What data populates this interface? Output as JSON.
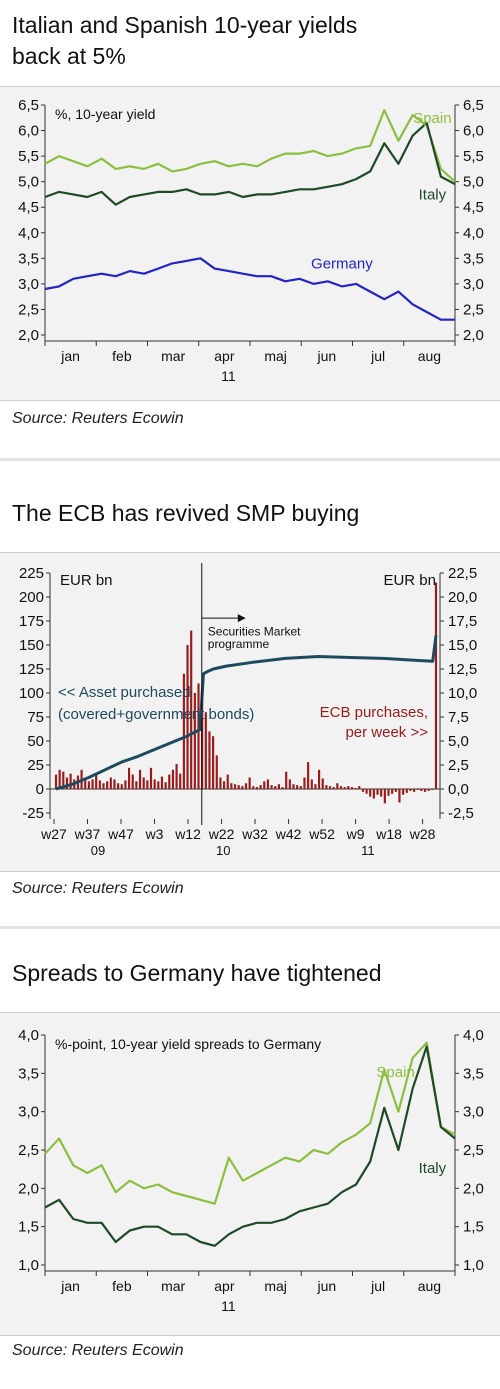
{
  "panels": [
    {
      "title_line1": "Italian and Spanish 10-year yields",
      "title_line2": "back at 5%",
      "source": "Source: Reuters Ecowin"
    },
    {
      "title_line1": "The ECB has revived SMP buying",
      "source": "Source: Reuters Ecowin"
    },
    {
      "title_line1": "Spreads to Germany have tightened",
      "source": "Source: Reuters Ecowin"
    }
  ],
  "chart_data": [
    {
      "type": "line",
      "ylabel": "%, 10-year yield",
      "ylim": [
        2.0,
        6.5
      ],
      "yticks": [
        "2,0",
        "2,5",
        "3,0",
        "3,5",
        "4,0",
        "4,5",
        "5,0",
        "5,5",
        "6,0",
        "6,5"
      ],
      "xticks": [
        "jan",
        "feb",
        "mar",
        "apr",
        "maj",
        "jun",
        "jul",
        "aug"
      ],
      "xsub": "11",
      "colors": {
        "Spain": "#8cbf3f",
        "Italy": "#1f4a26",
        "Germany": "#2323c8"
      },
      "series": [
        {
          "name": "Spain",
          "t": [
            0,
            0.25,
            0.5,
            0.75,
            1,
            1.25,
            1.5,
            1.75,
            2,
            2.25,
            2.5,
            2.75,
            3,
            3.25,
            3.5,
            3.75,
            4,
            4.25,
            4.5,
            4.75,
            5,
            5.25,
            5.5,
            5.75,
            6,
            6.25,
            6.5,
            6.75,
            7,
            7.25
          ],
          "values": [
            5.35,
            5.5,
            5.4,
            5.3,
            5.45,
            5.25,
            5.3,
            5.25,
            5.35,
            5.2,
            5.25,
            5.35,
            5.4,
            5.3,
            5.35,
            5.3,
            5.45,
            5.55,
            5.55,
            5.6,
            5.5,
            5.55,
            5.65,
            5.7,
            6.4,
            5.8,
            6.3,
            6.1,
            5.25,
            5.0
          ]
        },
        {
          "name": "Italy",
          "t": [
            0,
            0.25,
            0.5,
            0.75,
            1,
            1.25,
            1.5,
            1.75,
            2,
            2.25,
            2.5,
            2.75,
            3,
            3.25,
            3.5,
            3.75,
            4,
            4.25,
            4.5,
            4.75,
            5,
            5.25,
            5.5,
            5.75,
            6,
            6.25,
            6.5,
            6.75,
            7,
            7.25
          ],
          "values": [
            4.7,
            4.8,
            4.75,
            4.7,
            4.8,
            4.55,
            4.7,
            4.75,
            4.8,
            4.8,
            4.85,
            4.75,
            4.75,
            4.8,
            4.7,
            4.75,
            4.75,
            4.8,
            4.85,
            4.85,
            4.9,
            4.95,
            5.05,
            5.2,
            5.75,
            5.35,
            5.9,
            6.15,
            5.1,
            4.95
          ]
        },
        {
          "name": "Germany",
          "t": [
            0,
            0.25,
            0.5,
            0.75,
            1,
            1.25,
            1.5,
            1.75,
            2,
            2.25,
            2.5,
            2.75,
            3,
            3.25,
            3.5,
            3.75,
            4,
            4.25,
            4.5,
            4.75,
            5,
            5.25,
            5.5,
            5.75,
            6,
            6.25,
            6.5,
            6.75,
            7,
            7.25
          ],
          "values": [
            2.9,
            2.95,
            3.1,
            3.15,
            3.2,
            3.15,
            3.25,
            3.2,
            3.3,
            3.4,
            3.45,
            3.5,
            3.3,
            3.25,
            3.2,
            3.15,
            3.15,
            3.05,
            3.1,
            3.0,
            3.05,
            2.95,
            3.0,
            2.85,
            2.7,
            2.85,
            2.6,
            2.45,
            2.3,
            2.3
          ]
        }
      ],
      "labels": {
        "spain": "Spain",
        "italy": "Italy",
        "germany": "Germany"
      }
    },
    {
      "type": "bar",
      "ylabel_left": "EUR bn",
      "ylabel_right": "EUR bn",
      "ylim_left": [
        -25,
        225
      ],
      "ylim_right": [
        -2.5,
        22.5
      ],
      "yticks_left": [
        "-25",
        "0",
        "25",
        "50",
        "75",
        "100",
        "125",
        "150",
        "175",
        "200",
        "225"
      ],
      "yticks_right": [
        "-2,5",
        "0,0",
        "2,5",
        "5,0",
        "7,5",
        "10,0",
        "12,5",
        "15,0",
        "17,5",
        "20,0",
        "22,5"
      ],
      "xticks": [
        "w27",
        "w37",
        "w47",
        "w3",
        "w12",
        "w22",
        "w32",
        "w42",
        "w52",
        "w9",
        "w18",
        "w28"
      ],
      "year_labels": [
        "09",
        "10",
        "11"
      ],
      "annotations": {
        "smp": "Securities Market",
        "smp2": "programme",
        "asset1": "<< Asset purchased",
        "asset2": "(covered+government bonds)",
        "ecb1": "ECB purchases,",
        "ecb2": "per week >>"
      },
      "series": [
        {
          "name": "Asset purchased",
          "color": "#1d4a5c",
          "t": [
            0,
            5,
            10,
            15,
            20,
            25,
            30,
            35,
            40,
            44,
            45,
            46,
            48,
            52,
            60,
            70,
            80,
            90,
            100,
            110,
            115,
            116
          ],
          "values": [
            0,
            5,
            12,
            20,
            28,
            34,
            41,
            48,
            55,
            62,
            120,
            122,
            125,
            128,
            132,
            136,
            138,
            137,
            136,
            134,
            133,
            160
          ]
        },
        {
          "name": "ECB purchases, per week",
          "color": "#9b1b1b",
          "values": [
            1.5,
            2.0,
            1.8,
            1.2,
            1.6,
            1.0,
            1.4,
            2.0,
            1.2,
            0.8,
            1.0,
            1.6,
            0.9,
            0.6,
            0.8,
            1.2,
            1.0,
            0.6,
            0.5,
            0.9,
            2.2,
            1.5,
            0.8,
            2.0,
            1.2,
            0.9,
            2.2,
            1.0,
            0.8,
            1.3,
            0.7,
            1.5,
            2.0,
            2.6,
            1.6,
            12.0,
            15.0,
            16.5,
            10.0,
            11.0,
            9.0,
            8.0,
            6.0,
            5.5,
            3.5,
            1.2,
            0.8,
            1.5,
            0.6,
            0.5,
            0.4,
            0.3,
            0.6,
            1.2,
            0.3,
            0.2,
            0.4,
            0.8,
            1.0,
            0.4,
            0.3,
            0.5,
            0.2,
            1.8,
            1.0,
            0.5,
            0.4,
            0.3,
            1.2,
            2.8,
            1.0,
            0.5,
            2.0,
            1.1,
            0.4,
            0.3,
            0.2,
            0.6,
            0.3,
            0.2,
            0.3,
            0.2,
            0.1,
            0.3,
            -0.3,
            -0.5,
            -0.8,
            -1.0,
            -0.6,
            -0.8,
            -1.5,
            -0.7,
            -0.5,
            -0.3,
            -1.4,
            -0.6,
            -0.4,
            -0.2,
            -0.3,
            -0.1,
            -0.2,
            -0.3,
            -0.2,
            -0.1,
            21.5
          ]
        }
      ]
    },
    {
      "type": "line",
      "ylabel": "%-point, 10-year yield spreads to Germany",
      "ylim": [
        1.0,
        4.0
      ],
      "yticks": [
        "1,0",
        "1,5",
        "2,0",
        "2,5",
        "3,0",
        "3,5",
        "4,0"
      ],
      "xticks": [
        "jan",
        "feb",
        "mar",
        "apr",
        "maj",
        "jun",
        "jul",
        "aug"
      ],
      "xsub": "11",
      "colors": {
        "Spain": "#8cbf3f",
        "Italy": "#1f4a26"
      },
      "series": [
        {
          "name": "Spain",
          "t": [
            0,
            0.25,
            0.5,
            0.75,
            1,
            1.25,
            1.5,
            1.75,
            2,
            2.25,
            2.5,
            2.75,
            3,
            3.25,
            3.5,
            3.75,
            4,
            4.25,
            4.5,
            4.75,
            5,
            5.25,
            5.5,
            5.75,
            6,
            6.25,
            6.5,
            6.75,
            7,
            7.25
          ],
          "values": [
            2.45,
            2.65,
            2.3,
            2.2,
            2.3,
            1.95,
            2.1,
            2.0,
            2.05,
            1.95,
            1.9,
            1.85,
            1.8,
            2.4,
            2.1,
            2.2,
            2.3,
            2.4,
            2.35,
            2.5,
            2.45,
            2.6,
            2.7,
            2.85,
            3.55,
            3.0,
            3.7,
            3.9,
            2.8,
            2.7
          ]
        },
        {
          "name": "Italy",
          "t": [
            0,
            0.25,
            0.5,
            0.75,
            1,
            1.25,
            1.5,
            1.75,
            2,
            2.25,
            2.5,
            2.75,
            3,
            3.25,
            3.5,
            3.75,
            4,
            4.25,
            4.5,
            4.75,
            5,
            5.25,
            5.5,
            5.75,
            6,
            6.25,
            6.5,
            6.75,
            7,
            7.25
          ],
          "values": [
            1.75,
            1.85,
            1.6,
            1.55,
            1.55,
            1.3,
            1.45,
            1.5,
            1.5,
            1.4,
            1.4,
            1.3,
            1.25,
            1.4,
            1.5,
            1.55,
            1.55,
            1.6,
            1.7,
            1.75,
            1.8,
            1.95,
            2.05,
            2.35,
            3.05,
            2.5,
            3.3,
            3.85,
            2.8,
            2.65
          ]
        }
      ],
      "labels": {
        "spain": "Spain",
        "italy": "Italy"
      }
    }
  ]
}
